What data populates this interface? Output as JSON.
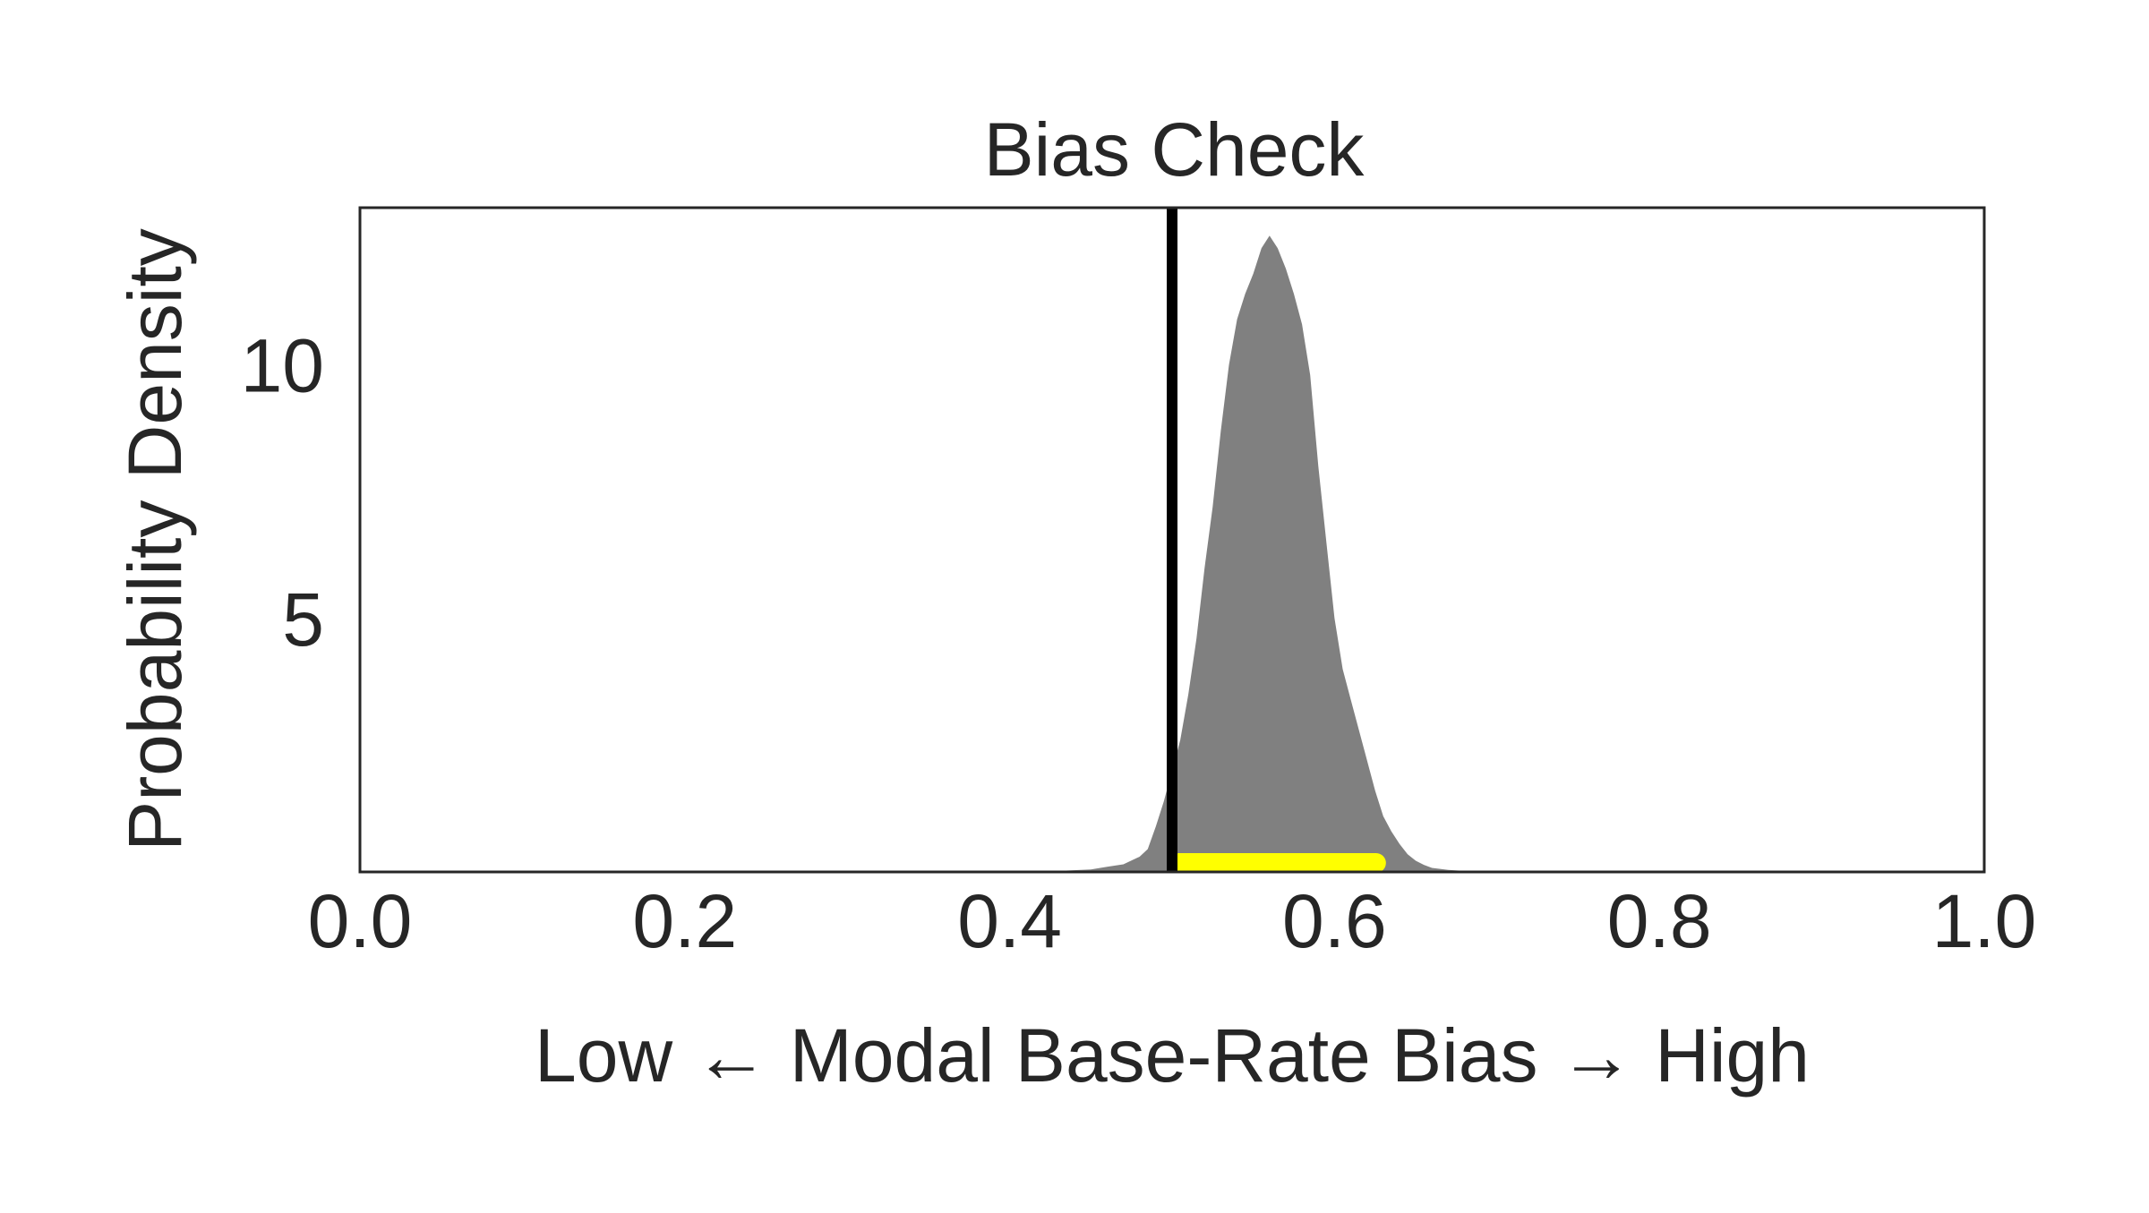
{
  "chart_data": {
    "type": "area",
    "title": "Bias Check",
    "xlabel": "Low ← Modal Base-Rate Bias → High",
    "ylabel": "Probability Density",
    "xlim": [
      0.0,
      1.0
    ],
    "ylim": [
      0,
      13.1
    ],
    "xticks": [
      0.0,
      0.2,
      0.4,
      0.6,
      0.8,
      1.0
    ],
    "xtick_labels": [
      "0.0",
      "0.2",
      "0.4",
      "0.6",
      "0.8",
      "1.0"
    ],
    "yticks": [
      5,
      10
    ],
    "ytick_labels": [
      "5",
      "10"
    ],
    "grid": false,
    "legend": "none",
    "series": [
      {
        "kind": "density",
        "color": "#808080",
        "x": [
          0.41,
          0.43,
          0.45,
          0.46,
          0.47,
          0.48,
          0.485,
          0.49,
          0.495,
          0.5,
          0.505,
          0.51,
          0.515,
          0.52,
          0.525,
          0.53,
          0.535,
          0.54,
          0.545,
          0.55,
          0.555,
          0.56,
          0.565,
          0.57,
          0.575,
          0.58,
          0.585,
          0.59,
          0.595,
          0.6,
          0.605,
          0.61,
          0.615,
          0.62,
          0.625,
          0.63,
          0.635,
          0.64,
          0.645,
          0.65,
          0.655,
          0.66,
          0.67,
          0.68,
          0.69,
          0.7,
          0.72
        ],
        "y": [
          0.0,
          0.02,
          0.05,
          0.1,
          0.15,
          0.3,
          0.45,
          0.9,
          1.4,
          2.0,
          2.6,
          3.5,
          4.6,
          6.0,
          7.2,
          8.7,
          10.0,
          10.9,
          11.4,
          11.8,
          12.3,
          12.55,
          12.3,
          11.9,
          11.4,
          10.8,
          9.8,
          8.0,
          6.5,
          5.0,
          4.0,
          3.4,
          2.8,
          2.2,
          1.6,
          1.1,
          0.8,
          0.55,
          0.35,
          0.22,
          0.14,
          0.08,
          0.04,
          0.02,
          0.01,
          0.0,
          0.0
        ]
      }
    ],
    "reference_line": {
      "x": 0.5,
      "color": "#000000"
    },
    "interval": {
      "start": 0.5,
      "end": 0.63,
      "y": 0.0,
      "color": "#ffff00"
    }
  }
}
